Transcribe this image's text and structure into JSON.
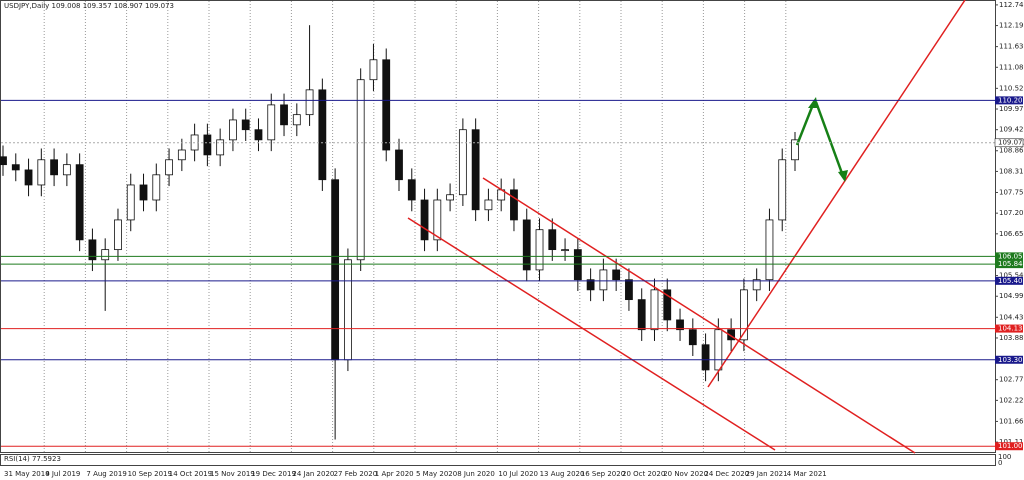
{
  "chart_data": {
    "type": "candlestick",
    "title": "USDJPY,Daily 109.008 109.357 108.907 109.073",
    "open": [
      108.7,
      108.49,
      108.35,
      107.95,
      108.62,
      108.22,
      108.49,
      106.49,
      105.96,
      106.23,
      107.02,
      107.95,
      107.55,
      108.22,
      108.62,
      108.88,
      109.28,
      108.75,
      109.15,
      109.68,
      109.42,
      109.15,
      110.08,
      109.55,
      109.82,
      110.48,
      108.09,
      103.3,
      105.96,
      110.75,
      111.28,
      108.88,
      108.09,
      107.55,
      106.49,
      107.55,
      107.69,
      109.42,
      107.29,
      107.55,
      107.82,
      107.02,
      105.69,
      106.76,
      106.23,
      106.23,
      105.43,
      105.16,
      105.69,
      105.43,
      104.9,
      104.1,
      105.16,
      104.36,
      104.1,
      103.7,
      103.03,
      104.1,
      103.83,
      105.16,
      105.43,
      107.02,
      108.62
    ],
    "high": [
      109.0,
      108.79,
      108.65,
      108.92,
      108.92,
      108.79,
      108.79,
      106.79,
      106.53,
      107.32,
      108.25,
      108.25,
      108.52,
      108.92,
      109.18,
      109.58,
      109.58,
      109.45,
      109.98,
      109.98,
      109.72,
      110.38,
      110.38,
      110.12,
      112.2,
      110.78,
      108.39,
      106.26,
      111.05,
      111.7,
      111.58,
      109.18,
      108.39,
      107.85,
      107.85,
      107.99,
      109.72,
      109.72,
      107.85,
      108.12,
      108.12,
      107.32,
      107.06,
      107.06,
      106.53,
      106.53,
      105.73,
      105.99,
      105.99,
      105.73,
      105.2,
      105.46,
      105.46,
      104.66,
      104.4,
      104.0,
      104.4,
      104.4,
      105.46,
      105.73,
      107.32,
      108.92,
      109.36
    ],
    "low": [
      108.19,
      108.05,
      107.65,
      107.65,
      107.92,
      107.92,
      106.19,
      105.66,
      104.6,
      105.93,
      106.72,
      107.25,
      107.25,
      107.92,
      108.32,
      108.58,
      108.45,
      108.45,
      108.85,
      109.12,
      108.85,
      108.85,
      109.25,
      109.25,
      109.52,
      107.79,
      101.18,
      103.0,
      105.66,
      110.45,
      108.58,
      107.79,
      107.25,
      106.19,
      106.19,
      107.25,
      107.39,
      106.99,
      106.99,
      107.25,
      106.72,
      105.39,
      105.39,
      105.93,
      105.93,
      105.13,
      104.86,
      104.86,
      105.13,
      104.6,
      103.8,
      103.8,
      104.06,
      103.8,
      103.4,
      102.73,
      102.73,
      103.53,
      103.53,
      104.86,
      105.13,
      106.72,
      108.32
    ],
    "close": [
      108.49,
      108.35,
      107.95,
      108.62,
      108.22,
      108.49,
      106.49,
      105.96,
      106.23,
      107.02,
      107.95,
      107.55,
      108.22,
      108.62,
      108.88,
      109.28,
      108.75,
      109.15,
      109.68,
      109.42,
      109.15,
      110.08,
      109.55,
      109.82,
      110.48,
      108.09,
      103.3,
      105.96,
      110.75,
      111.28,
      108.88,
      108.09,
      107.55,
      106.49,
      107.55,
      107.69,
      109.42,
      107.29,
      107.55,
      107.82,
      107.02,
      105.69,
      106.76,
      106.23,
      106.23,
      105.43,
      105.16,
      105.69,
      105.43,
      104.9,
      104.1,
      105.16,
      104.36,
      104.1,
      103.7,
      103.03,
      104.1,
      103.83,
      105.16,
      105.43,
      107.02,
      108.62,
      109.15
    ],
    "x_labels": [
      "31 May 2019",
      "4 Jul 2019",
      "7 Aug 2019",
      "10 Sep 2019",
      "14 Oct 2019",
      "15 Nov 2019",
      "19 Dec 2019",
      "24 Jan 2020",
      "27 Feb 2020",
      "1 Apr 2020",
      "5 May 2020",
      "8 Jun 2020",
      "10 Jul 2020",
      "13 Aug 2020",
      "16 Sep 2020",
      "20 Oct 2020",
      "20 Nov 2020",
      "24 Dec 2020",
      "29 Jan 2021",
      "4 Mar 2021"
    ],
    "ylim": [
      100.82,
      112.87
    ],
    "yticks": [
      {
        "value": 112.74,
        "label": "112.740"
      },
      {
        "value": 112.19,
        "label": "112.190"
      },
      {
        "value": 111.63,
        "label": "111.630"
      },
      {
        "value": 111.08,
        "label": "111.080"
      },
      {
        "value": 110.52,
        "label": "110.520"
      },
      {
        "value": 109.97,
        "label": "109.970"
      },
      {
        "value": 109.42,
        "label": "109.420"
      },
      {
        "value": 108.86,
        "label": "108.860"
      },
      {
        "value": 108.31,
        "label": "108.310"
      },
      {
        "value": 107.75,
        "label": "107.750"
      },
      {
        "value": 107.2,
        "label": "107.200"
      },
      {
        "value": 106.65,
        "label": "106.650"
      },
      {
        "value": 105.54,
        "label": "105.540"
      },
      {
        "value": 104.99,
        "label": "104.990"
      },
      {
        "value": 104.43,
        "label": "104.430"
      },
      {
        "value": 103.88,
        "label": "103.880"
      },
      {
        "value": 102.77,
        "label": "102.770"
      },
      {
        "value": 102.22,
        "label": "102.220"
      },
      {
        "value": 101.66,
        "label": "101.660"
      },
      {
        "value": 101.11,
        "label": "101.110"
      }
    ],
    "levels": [
      {
        "value": 110.2,
        "label": "110.200",
        "color": "#1a1a8c"
      },
      {
        "value": 106.05,
        "label": "106.050",
        "color": "#1e7a1e"
      },
      {
        "value": 105.844,
        "label": "105.844",
        "color": "#1e7a1e"
      },
      {
        "value": 105.4,
        "label": "105.400",
        "color": "#1a1a8c"
      },
      {
        "value": 104.13,
        "label": "104.130",
        "color": "#e02020"
      },
      {
        "value": 103.3,
        "label": "103.300",
        "color": "#1a1a8c"
      },
      {
        "value": 101.0,
        "label": "101.000",
        "color": "#e02020"
      }
    ],
    "current_price": {
      "value": 109.073,
      "label": "109.073"
    },
    "indicator": {
      "label": "RSI(14) 77.5923",
      "scale": [
        "100",
        "0"
      ]
    }
  }
}
